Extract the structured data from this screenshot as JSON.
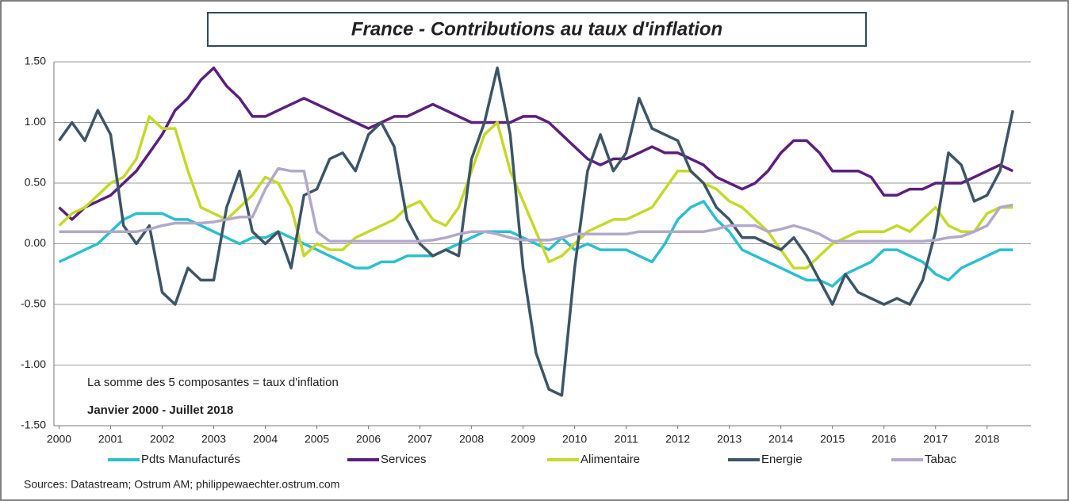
{
  "chart_data": {
    "type": "line",
    "title": "France - Contributions au taux d'inflation",
    "annotations": [
      "La somme des 5 composantes = taux d'inflation",
      "Janvier 2000 - Juillet 2018"
    ],
    "source": "Sources: Datastream; Ostrum AM; philippewaechter.ostrum.com",
    "grid": true,
    "legend": "bottom",
    "xlim": [
      1999.9,
      2018.85
    ],
    "xticks": [
      2000,
      2001,
      2002,
      2003,
      2004,
      2005,
      2006,
      2007,
      2008,
      2009,
      2010,
      2011,
      2012,
      2013,
      2014,
      2015,
      2016,
      2017,
      2018
    ],
    "ylim": [
      -1.5,
      1.5
    ],
    "yticks": [
      {
        "value": -1.5,
        "label": "-1.50"
      },
      {
        "value": -1,
        "label": "-1.00"
      },
      {
        "value": -0.5,
        "label": "-0.50"
      },
      {
        "value": 0,
        "label": "0.00"
      },
      {
        "value": 0.5,
        "label": "0.50"
      },
      {
        "value": 1,
        "label": "1.00"
      },
      {
        "value": 1.5,
        "label": "1.50"
      }
    ],
    "x": [
      2000,
      2000.25,
      2000.5,
      2000.75,
      2001,
      2001.25,
      2001.5,
      2001.75,
      2002,
      2002.25,
      2002.5,
      2002.75,
      2003,
      2003.25,
      2003.5,
      2003.75,
      2004,
      2004.25,
      2004.5,
      2004.75,
      2005,
      2005.25,
      2005.5,
      2005.75,
      2006,
      2006.25,
      2006.5,
      2006.75,
      2007,
      2007.25,
      2007.5,
      2007.75,
      2008,
      2008.25,
      2008.5,
      2008.75,
      2009,
      2009.25,
      2009.5,
      2009.75,
      2010,
      2010.25,
      2010.5,
      2010.75,
      2011,
      2011.25,
      2011.5,
      2011.75,
      2012,
      2012.25,
      2012.5,
      2012.75,
      2013,
      2013.25,
      2013.5,
      2013.75,
      2014,
      2014.25,
      2014.5,
      2014.75,
      2015,
      2015.25,
      2015.5,
      2015.75,
      2016,
      2016.25,
      2016.5,
      2016.75,
      2017,
      2017.25,
      2017.5,
      2017.75,
      2018,
      2018.25,
      2018.5
    ],
    "series": [
      {
        "name": "Pdts Manufacturés",
        "color": "#2bbfcf",
        "values": [
          -0.15,
          -0.1,
          -0.05,
          0.0,
          0.1,
          0.2,
          0.25,
          0.25,
          0.25,
          0.2,
          0.2,
          0.15,
          0.1,
          0.05,
          0.0,
          0.05,
          0.05,
          0.1,
          0.05,
          0.0,
          -0.05,
          -0.1,
          -0.15,
          -0.2,
          -0.2,
          -0.15,
          -0.15,
          -0.1,
          -0.1,
          -0.1,
          -0.05,
          0.0,
          0.05,
          0.1,
          0.1,
          0.1,
          0.05,
          0.0,
          -0.05,
          0.05,
          -0.05,
          0.0,
          -0.05,
          -0.05,
          -0.05,
          -0.1,
          -0.15,
          0.0,
          0.2,
          0.3,
          0.35,
          0.2,
          0.1,
          -0.05,
          -0.1,
          -0.15,
          -0.2,
          -0.25,
          -0.3,
          -0.3,
          -0.35,
          -0.25,
          -0.2,
          -0.15,
          -0.05,
          -0.05,
          -0.1,
          -0.15,
          -0.25,
          -0.3,
          -0.2,
          -0.15,
          -0.1,
          -0.05,
          -0.05
        ]
      },
      {
        "name": "Services",
        "color": "#5b1f7e",
        "values": [
          0.3,
          0.2,
          0.3,
          0.35,
          0.4,
          0.5,
          0.6,
          0.75,
          0.9,
          1.1,
          1.2,
          1.35,
          1.45,
          1.3,
          1.2,
          1.05,
          1.05,
          1.1,
          1.15,
          1.2,
          1.15,
          1.1,
          1.05,
          1.0,
          0.95,
          1.0,
          1.05,
          1.05,
          1.1,
          1.15,
          1.1,
          1.05,
          1.0,
          1.0,
          1.0,
          1.0,
          1.05,
          1.05,
          1.0,
          0.9,
          0.8,
          0.7,
          0.65,
          0.7,
          0.7,
          0.75,
          0.8,
          0.75,
          0.75,
          0.7,
          0.65,
          0.55,
          0.5,
          0.45,
          0.5,
          0.6,
          0.75,
          0.85,
          0.85,
          0.75,
          0.6,
          0.6,
          0.6,
          0.55,
          0.4,
          0.4,
          0.45,
          0.45,
          0.5,
          0.5,
          0.5,
          0.55,
          0.6,
          0.65,
          0.6
        ]
      },
      {
        "name": "Alimentaire",
        "color": "#c5d92a",
        "values": [
          0.15,
          0.25,
          0.3,
          0.4,
          0.5,
          0.55,
          0.7,
          1.05,
          0.95,
          0.95,
          0.6,
          0.3,
          0.25,
          0.2,
          0.3,
          0.4,
          0.55,
          0.5,
          0.3,
          -0.1,
          0.0,
          -0.05,
          -0.05,
          0.05,
          0.1,
          0.15,
          0.2,
          0.3,
          0.35,
          0.2,
          0.15,
          0.3,
          0.6,
          0.9,
          1.0,
          0.6,
          0.35,
          0.1,
          -0.15,
          -0.1,
          0.0,
          0.1,
          0.15,
          0.2,
          0.2,
          0.25,
          0.3,
          0.45,
          0.6,
          0.6,
          0.5,
          0.45,
          0.35,
          0.3,
          0.2,
          0.1,
          -0.05,
          -0.2,
          -0.2,
          -0.1,
          0.0,
          0.05,
          0.1,
          0.1,
          0.1,
          0.15,
          0.1,
          0.2,
          0.3,
          0.15,
          0.1,
          0.1,
          0.25,
          0.3,
          0.3
        ]
      },
      {
        "name": "Energie",
        "color": "#3d5566",
        "values": [
          0.85,
          1.0,
          0.85,
          1.1,
          0.9,
          0.15,
          0.0,
          0.15,
          -0.4,
          -0.5,
          -0.2,
          -0.3,
          -0.3,
          0.3,
          0.6,
          0.1,
          0.0,
          0.1,
          -0.2,
          0.4,
          0.45,
          0.7,
          0.75,
          0.6,
          0.9,
          1.0,
          0.8,
          0.2,
          0.0,
          -0.1,
          -0.05,
          -0.1,
          0.7,
          1.0,
          1.45,
          0.9,
          -0.2,
          -0.9,
          -1.2,
          -1.25,
          -0.2,
          0.6,
          0.9,
          0.6,
          0.75,
          1.2,
          0.95,
          0.9,
          0.85,
          0.6,
          0.5,
          0.3,
          0.2,
          0.05,
          0.05,
          0.0,
          -0.05,
          0.05,
          -0.1,
          -0.3,
          -0.5,
          -0.25,
          -0.4,
          -0.45,
          -0.5,
          -0.45,
          -0.5,
          -0.3,
          0.1,
          0.75,
          0.65,
          0.35,
          0.4,
          0.6,
          1.1
        ]
      },
      {
        "name": "Tabac",
        "color": "#b3a8cc",
        "values": [
          0.1,
          0.1,
          0.1,
          0.1,
          0.1,
          0.1,
          0.1,
          0.12,
          0.15,
          0.17,
          0.17,
          0.17,
          0.18,
          0.2,
          0.22,
          0.22,
          0.45,
          0.62,
          0.6,
          0.6,
          0.1,
          0.02,
          0.02,
          0.02,
          0.02,
          0.02,
          0.02,
          0.02,
          0.02,
          0.03,
          0.05,
          0.08,
          0.1,
          0.1,
          0.08,
          0.05,
          0.03,
          0.03,
          0.03,
          0.05,
          0.08,
          0.08,
          0.08,
          0.08,
          0.08,
          0.1,
          0.1,
          0.1,
          0.1,
          0.1,
          0.1,
          0.12,
          0.15,
          0.15,
          0.15,
          0.1,
          0.12,
          0.15,
          0.12,
          0.08,
          0.02,
          0.02,
          0.02,
          0.02,
          0.02,
          0.02,
          0.02,
          0.02,
          0.03,
          0.05,
          0.06,
          0.1,
          0.15,
          0.3,
          0.32
        ]
      }
    ]
  }
}
